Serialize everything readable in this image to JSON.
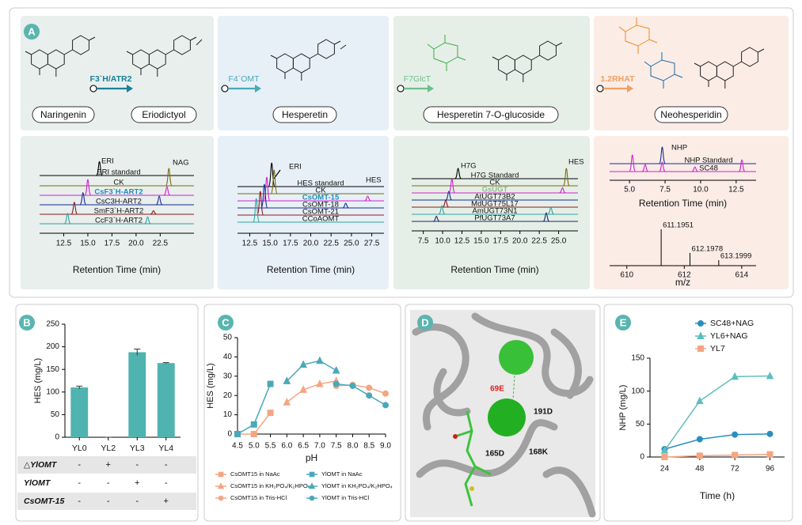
{
  "figure": {
    "panel_a": {
      "label": "A",
      "compounds": [
        "Naringenin",
        "Eriodictyol",
        "Hesperetin",
        "Hesperetin 7-O-glucoside",
        "Neohesperidin"
      ],
      "enzymes": [
        "F3`H/ATR2",
        "F4`OMT",
        "F7GlcT",
        "1.2RHAT"
      ]
    },
    "panel_d": {
      "label": "D",
      "residues": [
        "69E",
        "191D",
        "165D",
        "168K"
      ]
    }
  },
  "chart_data": [
    {
      "type": "chromatogram",
      "xlabel": "Retention Time (min)",
      "xlim": [
        10,
        26
      ],
      "xticks": [
        12.5,
        {
          "value": 15,
          "label": "15.0"
        },
        17.5,
        {
          "value": 20,
          "label": "20.0"
        },
        22.5
      ],
      "annotations": [
        "ERI",
        "NAG"
      ],
      "series": [
        {
          "name": "ERI standard",
          "color": "#000000",
          "x": [
            16.2
          ],
          "values": [
            0.8
          ]
        },
        {
          "name": "CK",
          "color": "#7a6a10",
          "x": [
            23.4
          ],
          "values": [
            1.0
          ]
        },
        {
          "name": "CsF3`H-ART2",
          "color": "#d020d0",
          "label_color": "#1a8fbf",
          "label_bold": true,
          "x": [
            15.0,
            23.2
          ],
          "values": [
            0.9,
            0.5
          ]
        },
        {
          "name": "CsC3H-ART2",
          "color": "#1a2a9a",
          "x": [
            14.5,
            22.4
          ],
          "values": [
            0.7,
            0.5
          ]
        },
        {
          "name": "SmF3`H-ART2",
          "color": "#8b1a1a",
          "x": [
            13.6,
            21.8
          ],
          "values": [
            0.7,
            0.2
          ]
        },
        {
          "name": "CcF3`H-ART2",
          "color": "#2aa5a5",
          "x": [
            12.9,
            21.2
          ],
          "values": [
            0.6,
            0.4
          ]
        }
      ]
    },
    {
      "type": "chromatogram",
      "xlabel": "Retention Time (min)",
      "xlim": [
        11,
        29
      ],
      "xticks": [
        12.5,
        {
          "value": 15,
          "label": "15.0"
        },
        17.5,
        {
          "value": 20,
          "label": "20.0"
        },
        22.5,
        {
          "value": 25,
          "label": "25.0"
        },
        27.5
      ],
      "annotations": [
        "ERI",
        "HES"
      ],
      "series": [
        {
          "name": "HES standard",
          "color": "#000000",
          "x": [
            15.2
          ],
          "values": [
            1.0
          ]
        },
        {
          "name": "CK",
          "color": "#7a6a10",
          "x": [
            15.5
          ],
          "values": [
            1.0
          ]
        },
        {
          "name": "CsOMT-15",
          "color": "#d020d0",
          "label_color": "#1a8fbf",
          "label_bold": true,
          "x": [
            14.6,
            27.0
          ],
          "values": [
            1.0,
            0.2
          ]
        },
        {
          "name": "CsOMT-18",
          "color": "#1a2a9a",
          "x": [
            14.3,
            24.3
          ],
          "values": [
            1.0,
            0.2
          ]
        },
        {
          "name": "CsOMT-21",
          "color": "#8b1a1a",
          "x": [
            13.8
          ],
          "values": [
            1.0
          ]
        },
        {
          "name": "CCoAOMT",
          "color": "#2aa5a5",
          "x": [
            13.3
          ],
          "values": [
            1.0
          ]
        }
      ]
    },
    {
      "type": "chromatogram",
      "xlabel": "Retention Time (min)",
      "xlim": [
        6,
        27.5
      ],
      "xticks": [
        7.5,
        {
          "value": 10,
          "label": "10.0"
        },
        12.5,
        {
          "value": 15,
          "label": "15.0"
        },
        17.5,
        {
          "value": 20,
          "label": "20.0"
        },
        22.5,
        {
          "value": 25,
          "label": "25.0"
        }
      ],
      "annotations": [
        "H7G",
        "HES"
      ],
      "series": [
        {
          "name": "H7G Standard",
          "color": "#000000",
          "x": [
            12.0
          ],
          "values": [
            0.6
          ]
        },
        {
          "name": "CK",
          "color": "#7a6a10",
          "x": [
            26.0
          ],
          "values": [
            1.0
          ]
        },
        {
          "name": "GsUGT",
          "color": "#d020d0",
          "label_color": "#8fc08f",
          "label_bold": true,
          "x": [
            11.2,
            25.5
          ],
          "values": [
            0.8,
            0.3
          ]
        },
        {
          "name": "AtUGT73B2",
          "color": "#1a2a9a",
          "x": [
            10.8
          ],
          "values": [
            0.5
          ]
        },
        {
          "name": "MdUGT75L17",
          "color": "#8b1a1a",
          "x": [
            10.4
          ],
          "values": [
            0.4
          ]
        },
        {
          "name": "AmUGT73N1",
          "color": "#2aa5a5",
          "x": [
            9.9,
            24.0
          ],
          "values": [
            0.5,
            0.4
          ]
        },
        {
          "name": "PfUGT73A7",
          "color": "#1a2a6a",
          "x": [
            9.2,
            23.4
          ],
          "values": [
            0.3,
            0.5
          ]
        }
      ]
    },
    {
      "type": "chromatogram",
      "xlabel": "Retention Time (min)",
      "xlim": [
        3.6,
        13.9
      ],
      "xticks": [
        {
          "value": 5,
          "label": "5.0"
        },
        7.5,
        {
          "value": 10,
          "label": "10.0"
        },
        12.5
      ],
      "annotations": [
        "NHP"
      ],
      "series": [
        {
          "name": "NHP Standard",
          "color": "#1a2a9a",
          "x": [
            7.3
          ],
          "values": [
            0.7
          ]
        },
        {
          "name": "SC48",
          "color": "#d020d0",
          "x": [
            5.2,
            6.1,
            7.3,
            9.6,
            12.9
          ],
          "values": [
            0.7,
            0.3,
            0.4,
            0.2,
            0.5
          ]
        }
      ]
    },
    {
      "type": "mass_spectrum",
      "xlabel": "m/z",
      "xlim": [
        609.4,
        614.5
      ],
      "xticks": [
        610,
        612,
        614
      ],
      "x": [
        611.1951,
        612.1978,
        613.1999
      ],
      "values": [
        1.0,
        0.35,
        0.15
      ]
    },
    {
      "type": "bar",
      "panel": "B",
      "ylabel": "HES (mg/L)",
      "color": "#4fb3b0",
      "categories": [
        "YL0",
        "YL2",
        "YL3",
        "YL4"
      ],
      "values": [
        110,
        0,
        188,
        164
      ],
      "errors": [
        3,
        0,
        7,
        1
      ],
      "ylim": [
        0,
        250
      ],
      "yticks": [
        0,
        50,
        100,
        150,
        200,
        250
      ],
      "table": [
        {
          "label": "△YlOMT",
          "cells": [
            "-",
            "+",
            "-",
            "-"
          ]
        },
        {
          "label": "YlOMT",
          "cells": [
            "-",
            "-",
            "+",
            "-"
          ]
        },
        {
          "label": "CsOMT-15",
          "cells": [
            "-",
            "-",
            "-",
            "+"
          ]
        }
      ]
    },
    {
      "type": "line",
      "panel": "C",
      "xlabel": "pH",
      "ylabel": "HES (mg/L)",
      "legend": "bottom",
      "xlim": [
        4.5,
        9.0
      ],
      "xticks": [
        4.5,
        {
          "value": 5,
          "label": "5.0"
        },
        5.5,
        {
          "value": 6,
          "label": "6.0"
        },
        6.5,
        {
          "value": 7,
          "label": "7.0"
        },
        7.5,
        {
          "value": 8,
          "label": "8.0"
        },
        8.5,
        {
          "value": 9,
          "label": "9.0"
        }
      ],
      "ylim": [
        0,
        50
      ],
      "yticks": [
        0,
        10,
        20,
        30,
        40,
        50
      ],
      "series": [
        {
          "name": "CsOMT15 in NaAc",
          "color": "#f4a582",
          "marker": "square",
          "x": [
            4.5,
            5.0,
            5.5
          ],
          "values": [
            0,
            0,
            11
          ]
        },
        {
          "name": "YlOMT in NaAc",
          "color": "#4aa8b8",
          "marker": "square",
          "x": [
            4.5,
            5.0,
            5.5
          ],
          "values": [
            0,
            5,
            26
          ]
        },
        {
          "name": "CsOMT15 in KH₂PO₄/K₂HPO₄",
          "color": "#f4a582",
          "marker": "triangle",
          "x": [
            6.0,
            6.5,
            7.0,
            7.5
          ],
          "values": [
            16.5,
            23,
            26,
            27.5
          ]
        },
        {
          "name": "YlOMT in KH₂PO₄/K₂HPO₄",
          "color": "#4aa8b8",
          "marker": "triangle",
          "x": [
            6.0,
            6.5,
            7.0,
            7.5
          ],
          "values": [
            27.5,
            36,
            38,
            33
          ]
        },
        {
          "name": "CsOMT15 in Tris-HCl",
          "color": "#f4a582",
          "marker": "circle",
          "x": [
            7.5,
            8.0,
            8.5,
            9.0
          ],
          "values": [
            25,
            25.5,
            24,
            21
          ]
        },
        {
          "name": "YlOMT in Tris-HCl",
          "color": "#4aa8b8",
          "marker": "circle",
          "x": [
            7.5,
            8.0,
            8.5,
            9.0
          ],
          "values": [
            26,
            25,
            20,
            15
          ]
        }
      ]
    },
    {
      "type": "line",
      "panel": "E",
      "xlabel": "Time (h)",
      "ylabel": "NHP (mg/L)",
      "legend": "top",
      "x": [
        24,
        48,
        72,
        96
      ],
      "xlim": [
        14,
        106
      ],
      "xticks": [
        24,
        48,
        72,
        96
      ],
      "ylim": [
        0,
        150
      ],
      "yticks": [
        0,
        50,
        100,
        150
      ],
      "series": [
        {
          "name": "SC48+NAG",
          "color": "#2a8fbf",
          "marker": "circle",
          "values": [
            12,
            27,
            34,
            35
          ]
        },
        {
          "name": "YL6+NAG",
          "color": "#5fbfbf",
          "marker": "triangle",
          "values": [
            10,
            85,
            122,
            123
          ]
        },
        {
          "name": "YL7",
          "color": "#f4a582",
          "marker": "square",
          "values": [
            0,
            2,
            3,
            4
          ]
        }
      ]
    }
  ]
}
